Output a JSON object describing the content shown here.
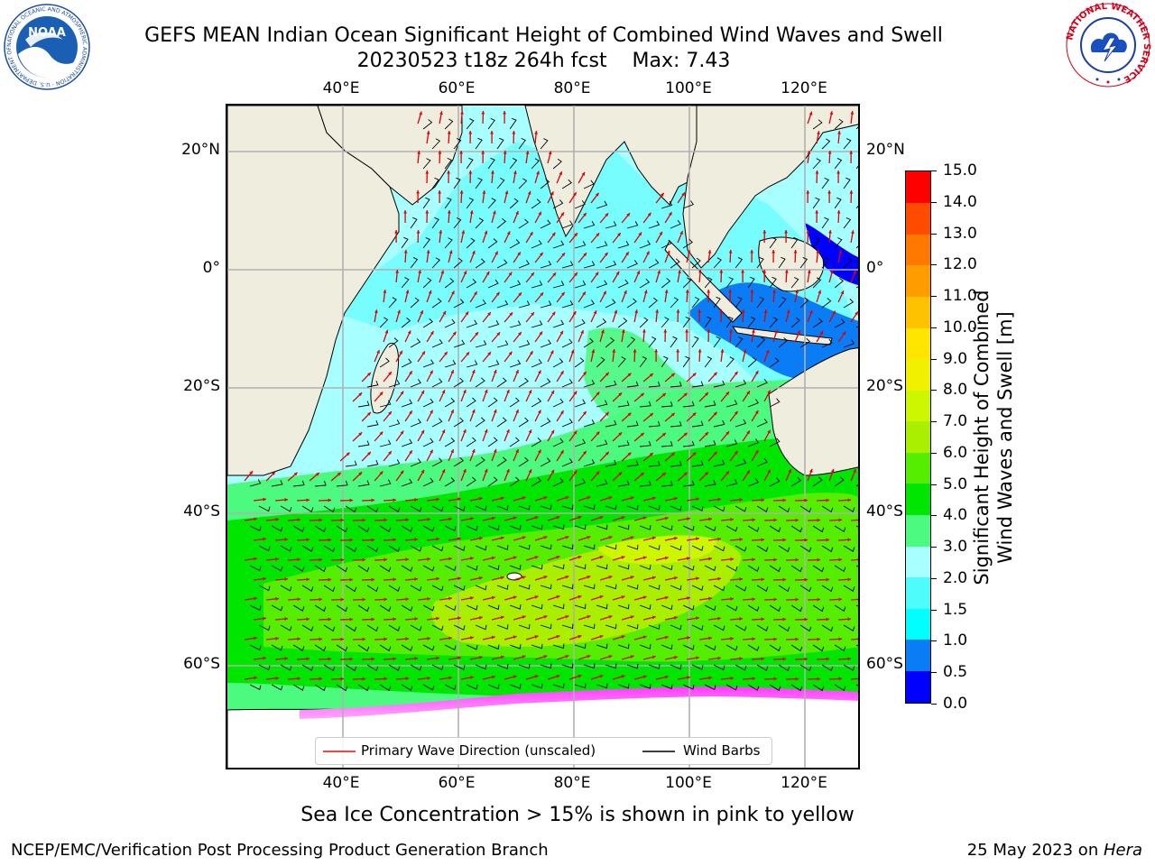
{
  "title": {
    "line1": "GEFS MEAN Indian Ocean Significant Height of Combined Wind Waves and Swell",
    "line2": "20230523 t18z 264h fcst    Max: 7.43"
  },
  "map": {
    "lon_labels": [
      "40°E",
      "60°E",
      "80°E",
      "100°E",
      "120°E"
    ],
    "lat_labels": [
      "20°N",
      "0°",
      "20°S",
      "40°S",
      "60°S"
    ],
    "grid": true
  },
  "colorbar": {
    "label_line1": "Significant Height of Combined",
    "label_line2": "Wind Waves and Swell [m]",
    "ticks": [
      "0.0",
      "0.5",
      "1.0",
      "1.5",
      "2.0",
      "3.0",
      "4.0",
      "5.0",
      "6.0",
      "7.0",
      "8.0",
      "9.0",
      "10.0",
      "11.0",
      "12.0",
      "13.0",
      "14.0",
      "15.0"
    ],
    "colors": [
      "#0000ff",
      "#0a7cf6",
      "#00ffff",
      "#4ffcfc",
      "#a8ffff",
      "#4cfa7f",
      "#00e600",
      "#55ee00",
      "#aaee00",
      "#ccf700",
      "#f0f000",
      "#ffe500",
      "#ffc200",
      "#ff9c00",
      "#ff7800",
      "#ff4b00",
      "#ff0000"
    ]
  },
  "legend": {
    "wave_label": "Primary Wave Direction (unscaled)",
    "wave_color": "#ff0000",
    "barb_label": "Wind Barbs",
    "barb_color": "#000000"
  },
  "footer": {
    "note": "Sea Ice Concentration > 15% is shown in pink to yellow",
    "left": "NCEP/EMC/Verification Post Processing Product Generation Branch",
    "right_prefix": "25 May 2023 on ",
    "right_host": "Hera"
  },
  "logos": {
    "noaa_text": "NOAA",
    "noaa_ring": "NATIONAL OCEANIC AND ATMOSPHERIC ADMINISTRATION · U.S. DEPARTMENT OF COMMERCE",
    "nws_ring": "NATIONAL WEATHER SERVICE"
  },
  "colors": {
    "land": "#efedde",
    "ice": "#ffffff",
    "grid": "#b0b0b0"
  }
}
